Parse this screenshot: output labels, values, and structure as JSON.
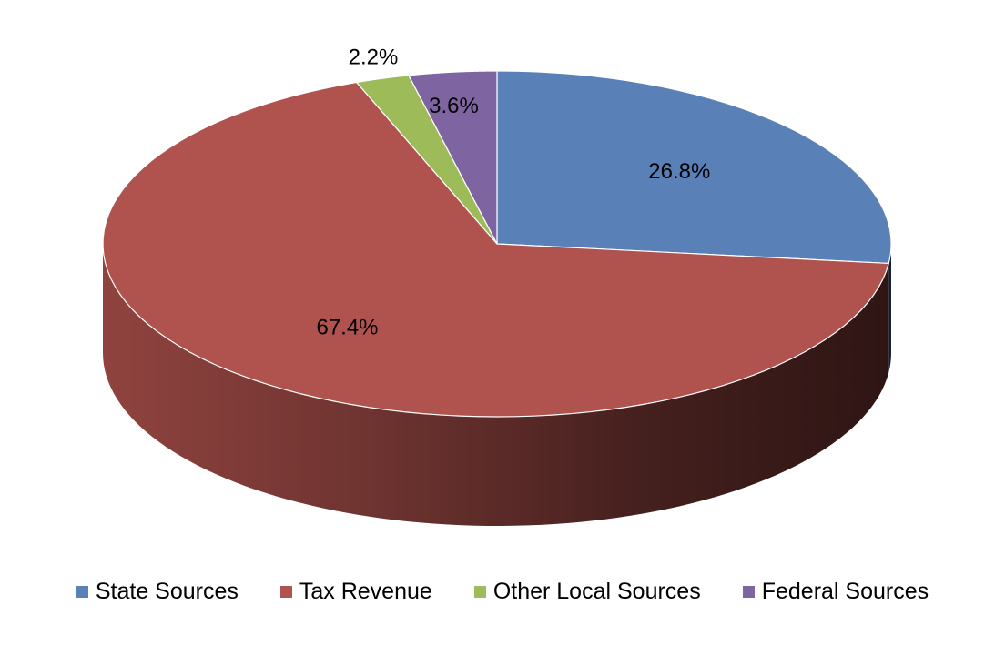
{
  "chart_data": {
    "type": "pie",
    "title": "",
    "categories": [
      "State Sources",
      "Tax Revenue",
      "Other Local Sources",
      "Federal Sources"
    ],
    "values": [
      26.8,
      67.4,
      2.2,
      3.6
    ],
    "data_labels": [
      "26.8%",
      "67.4%",
      "2.2%",
      "3.6%"
    ],
    "colors": [
      "#5A80B8",
      "#B0524D",
      "#9DBB59",
      "#7F64A2"
    ],
    "style": "3d",
    "start_angle_deg": 0,
    "direction": "clockwise",
    "legend_position": "bottom"
  }
}
